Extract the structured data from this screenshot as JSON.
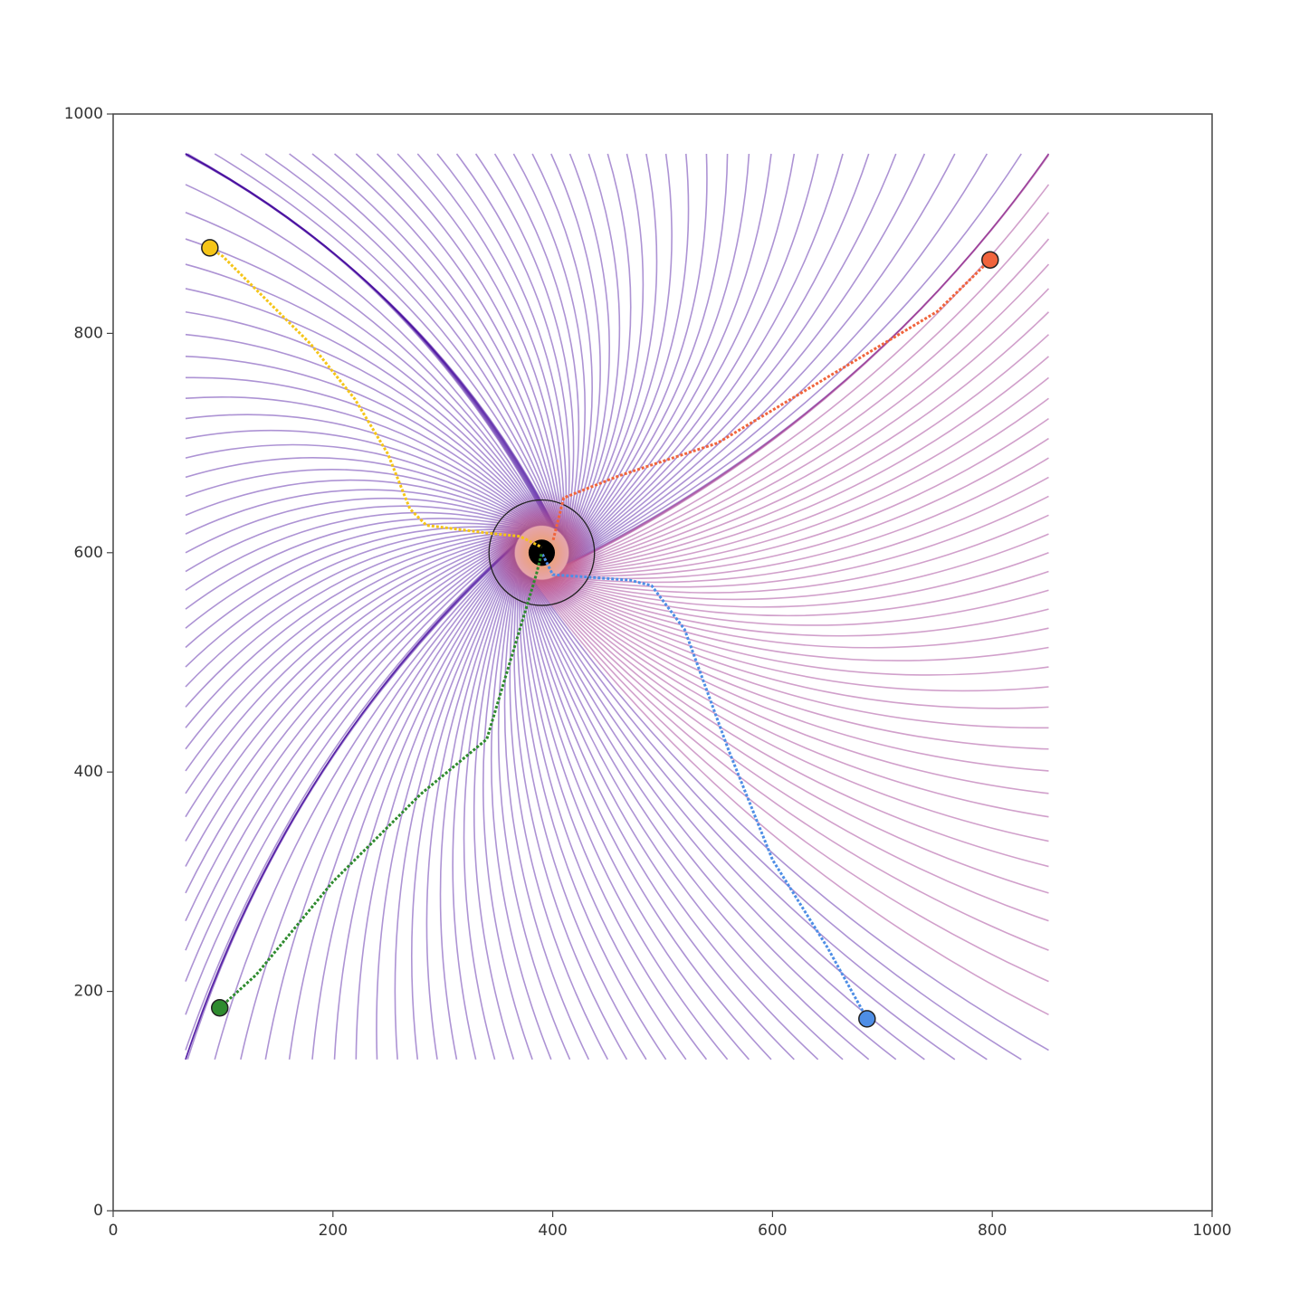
{
  "chart_data": {
    "type": "line",
    "xlim": [
      0,
      1000
    ],
    "ylim": [
      0,
      1000
    ],
    "xticks": [
      0,
      200,
      400,
      600,
      800,
      1000
    ],
    "yticks": [
      0,
      200,
      400,
      600,
      800,
      1000
    ],
    "target": {
      "x": 390,
      "y": 600,
      "radius": 48,
      "core": 12
    },
    "series": [
      {
        "color": "#f5c518",
        "x": [
          88,
          100,
          130,
          180,
          220,
          250,
          270,
          285,
          340,
          370,
          390
        ],
        "values": [
          878,
          870,
          840,
          790,
          740,
          690,
          640,
          625,
          618,
          615,
          605
        ]
      },
      {
        "color": "#f0643c",
        "x": [
          798,
          750,
          650,
          550,
          460,
          410,
          400
        ],
        "values": [
          867,
          820,
          760,
          700,
          670,
          650,
          610
        ]
      },
      {
        "color": "#4e8ee6",
        "x": [
          686,
          650,
          600,
          560,
          520,
          490,
          470,
          400,
          390
        ],
        "values": [
          175,
          240,
          320,
          420,
          530,
          570,
          575,
          580,
          600
        ]
      },
      {
        "color": "#2e8b2e",
        "x": [
          97,
          130,
          200,
          280,
          340,
          370,
          385,
          390
        ],
        "values": [
          185,
          215,
          300,
          380,
          430,
          530,
          580,
          600
        ]
      }
    ]
  }
}
